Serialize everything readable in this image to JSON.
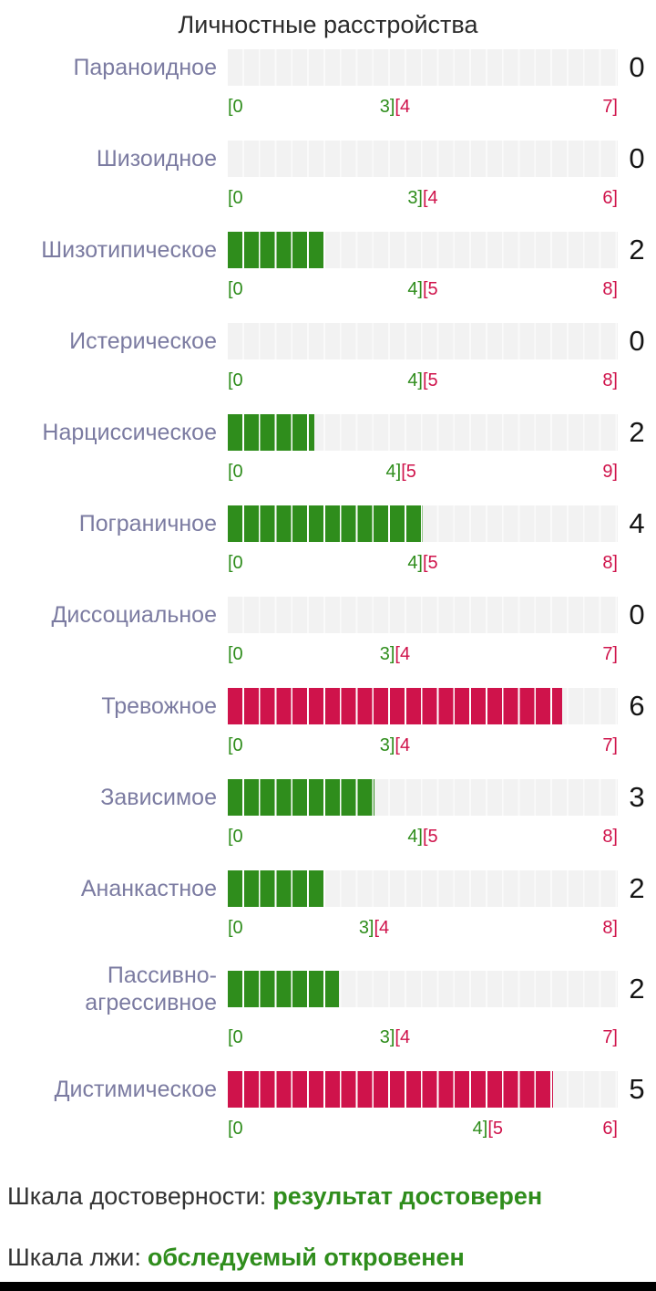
{
  "title": "Личностные расстройства",
  "colors": {
    "normal": "#2f8d1c",
    "elevated": "#cf134b",
    "label": "#7b7ba1",
    "track": "#f2f2f2"
  },
  "chart_data": {
    "type": "bar",
    "orientation": "horizontal",
    "title": "Личностные расстройства",
    "rows": [
      {
        "label": "Параноидное",
        "value": 0,
        "max": 7,
        "normal_max": 3,
        "zone": "normal",
        "scale": {
          "min": "[0",
          "normal_end": "3]",
          "elevated_start": "[4",
          "max": "7]"
        }
      },
      {
        "label": "Шизоидное",
        "value": 0,
        "max": 6,
        "normal_max": 3,
        "zone": "normal",
        "scale": {
          "min": "[0",
          "normal_end": "3]",
          "elevated_start": "[4",
          "max": "6]"
        }
      },
      {
        "label": "Шизотипическое",
        "value": 2,
        "max": 8,
        "normal_max": 4,
        "zone": "normal",
        "scale": {
          "min": "[0",
          "normal_end": "4]",
          "elevated_start": "[5",
          "max": "8]"
        }
      },
      {
        "label": "Истерическое",
        "value": 0,
        "max": 8,
        "normal_max": 4,
        "zone": "normal",
        "scale": {
          "min": "[0",
          "normal_end": "4]",
          "elevated_start": "[5",
          "max": "8]"
        }
      },
      {
        "label": "Нарциссическое",
        "value": 2,
        "max": 9,
        "normal_max": 4,
        "zone": "normal",
        "scale": {
          "min": "[0",
          "normal_end": "4]",
          "elevated_start": "[5",
          "max": "9]"
        }
      },
      {
        "label": "Пограничное",
        "value": 4,
        "max": 8,
        "normal_max": 4,
        "zone": "normal",
        "scale": {
          "min": "[0",
          "normal_end": "4]",
          "elevated_start": "[5",
          "max": "8]"
        }
      },
      {
        "label": "Диссоциальное",
        "value": 0,
        "max": 7,
        "normal_max": 3,
        "zone": "normal",
        "scale": {
          "min": "[0",
          "normal_end": "3]",
          "elevated_start": "[4",
          "max": "7]"
        }
      },
      {
        "label": "Тревожное",
        "value": 6,
        "max": 7,
        "normal_max": 3,
        "zone": "elevated",
        "scale": {
          "min": "[0",
          "normal_end": "3]",
          "elevated_start": "[4",
          "max": "7]"
        }
      },
      {
        "label": "Зависимое",
        "value": 3,
        "max": 8,
        "normal_max": 4,
        "zone": "normal",
        "scale": {
          "min": "[0",
          "normal_end": "4]",
          "elevated_start": "[5",
          "max": "8]"
        }
      },
      {
        "label": "Ананкастное",
        "value": 2,
        "max": 8,
        "normal_max": 3,
        "zone": "normal",
        "scale": {
          "min": "[0",
          "normal_end": "3]",
          "elevated_start": "[4",
          "max": "8]"
        }
      },
      {
        "label": "Пассивно-агрессивное",
        "value": 2,
        "max": 7,
        "normal_max": 3,
        "zone": "normal",
        "scale": {
          "min": "[0",
          "normal_end": "3]",
          "elevated_start": "[4",
          "max": "7]"
        }
      },
      {
        "label": "Дистимическое",
        "value": 5,
        "max": 6,
        "normal_max": 4,
        "zone": "elevated",
        "scale": {
          "min": "[0",
          "normal_end": "4]",
          "elevated_start": "[5",
          "max": "6]"
        }
      }
    ]
  },
  "footer": {
    "validity_label": "Шкала достоверности:",
    "validity_value": "результат достоверен",
    "lie_label": "Шкала лжи:",
    "lie_value": "обследуемый откровенен"
  }
}
